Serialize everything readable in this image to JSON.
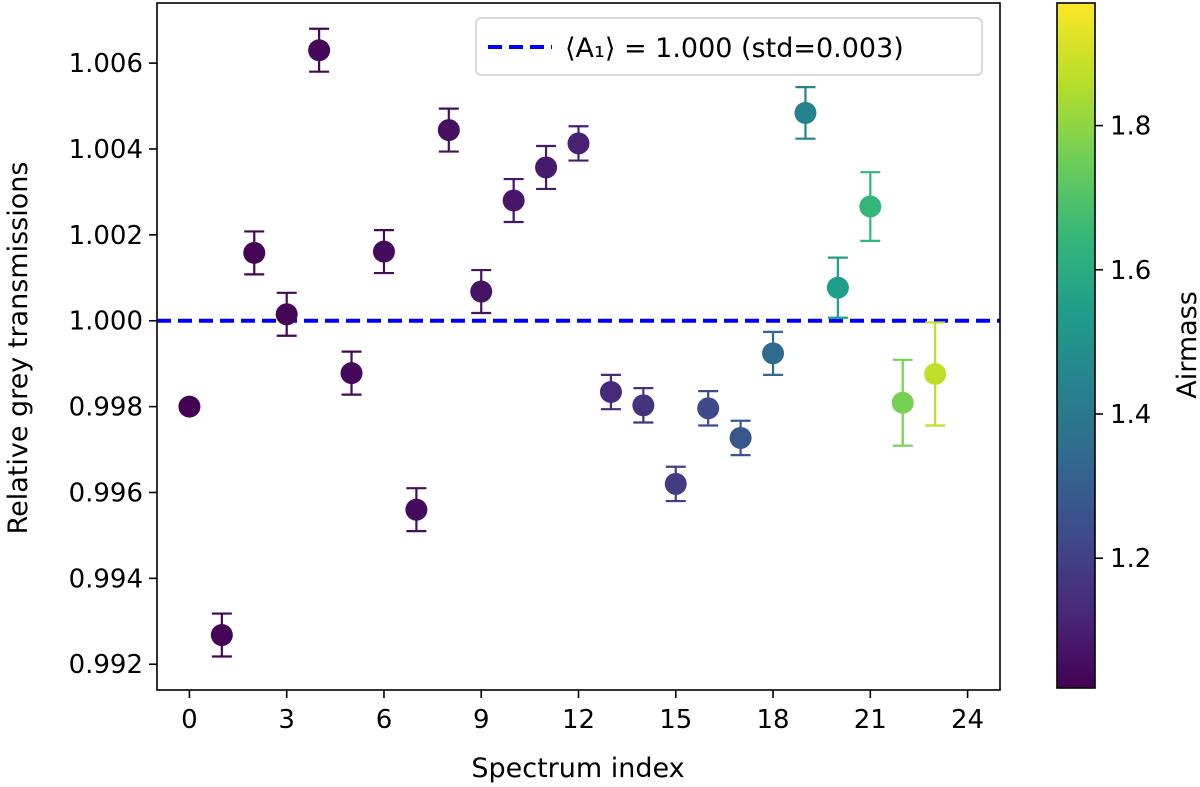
{
  "chart_data": {
    "type": "scatter",
    "title": "",
    "xlabel": "Spectrum index",
    "ylabel": "Relative grey transmissions",
    "xlim": [
      -1.0,
      25.0
    ],
    "ylim": [
      0.9914,
      1.0074
    ],
    "xticks": [
      0,
      3,
      6,
      9,
      12,
      15,
      18,
      21,
      24
    ],
    "yticks": [
      0.992,
      0.994,
      0.996,
      0.998,
      1.0,
      1.002,
      1.004,
      1.006
    ],
    "ytick_labels": [
      "0.992",
      "0.994",
      "0.996",
      "0.998",
      "1.000",
      "1.002",
      "1.004",
      "1.006"
    ],
    "grid": false,
    "series": [
      {
        "marker": "circle-with-errorbar",
        "points": [
          {
            "x": 0,
            "y": 0.998,
            "err": 0.0,
            "airmass": 1.02
          },
          {
            "x": 1,
            "y": 0.99268,
            "err": 0.0005,
            "airmass": 1.03
          },
          {
            "x": 2,
            "y": 1.00158,
            "err": 0.0005,
            "airmass": 1.03
          },
          {
            "x": 3,
            "y": 1.00015,
            "err": 0.0005,
            "airmass": 1.03
          },
          {
            "x": 4,
            "y": 1.0063,
            "err": 0.0005,
            "airmass": 1.04
          },
          {
            "x": 5,
            "y": 0.99878,
            "err": 0.0005,
            "airmass": 1.04
          },
          {
            "x": 6,
            "y": 1.00161,
            "err": 0.0005,
            "airmass": 1.05
          },
          {
            "x": 7,
            "y": 0.9956,
            "err": 0.0005,
            "airmass": 1.05
          },
          {
            "x": 8,
            "y": 1.00444,
            "err": 0.0005,
            "airmass": 1.06
          },
          {
            "x": 9,
            "y": 1.00068,
            "err": 0.0005,
            "airmass": 1.07
          },
          {
            "x": 10,
            "y": 1.0028,
            "err": 0.0005,
            "airmass": 1.08
          },
          {
            "x": 11,
            "y": 1.00357,
            "err": 0.0005,
            "airmass": 1.09
          },
          {
            "x": 12,
            "y": 1.00413,
            "err": 0.0004,
            "airmass": 1.11
          },
          {
            "x": 13,
            "y": 0.99834,
            "err": 0.0004,
            "airmass": 1.13
          },
          {
            "x": 14,
            "y": 0.99803,
            "err": 0.0004,
            "airmass": 1.16
          },
          {
            "x": 15,
            "y": 0.9962,
            "err": 0.0004,
            "airmass": 1.19
          },
          {
            "x": 16,
            "y": 0.99796,
            "err": 0.0004,
            "airmass": 1.23
          },
          {
            "x": 17,
            "y": 0.99727,
            "err": 0.0004,
            "airmass": 1.28
          },
          {
            "x": 18,
            "y": 0.99924,
            "err": 0.0005,
            "airmass": 1.35
          },
          {
            "x": 19,
            "y": 1.00484,
            "err": 0.0006,
            "airmass": 1.44
          },
          {
            "x": 20,
            "y": 1.00077,
            "err": 0.0007,
            "airmass": 1.55
          },
          {
            "x": 21,
            "y": 1.00266,
            "err": 0.0008,
            "airmass": 1.65
          },
          {
            "x": 22,
            "y": 0.99809,
            "err": 0.001,
            "airmass": 1.77
          },
          {
            "x": 23,
            "y": 0.99876,
            "err": 0.0012,
            "airmass": 1.88
          }
        ]
      }
    ],
    "mean_line": {
      "y": 1.0,
      "style": "dashed",
      "color": "#0000ff",
      "legend_label": "⟨A₁⟩ = 1.000 (std=0.003)"
    },
    "legend_placement": "top-right",
    "colorbar": {
      "label": "Airmass",
      "colormap": "viridis",
      "range": [
        1.02,
        1.97
      ],
      "ticks": [
        1.2,
        1.4,
        1.6,
        1.8
      ],
      "tick_labels": [
        "1.2",
        "1.4",
        "1.6",
        "1.8"
      ]
    }
  }
}
